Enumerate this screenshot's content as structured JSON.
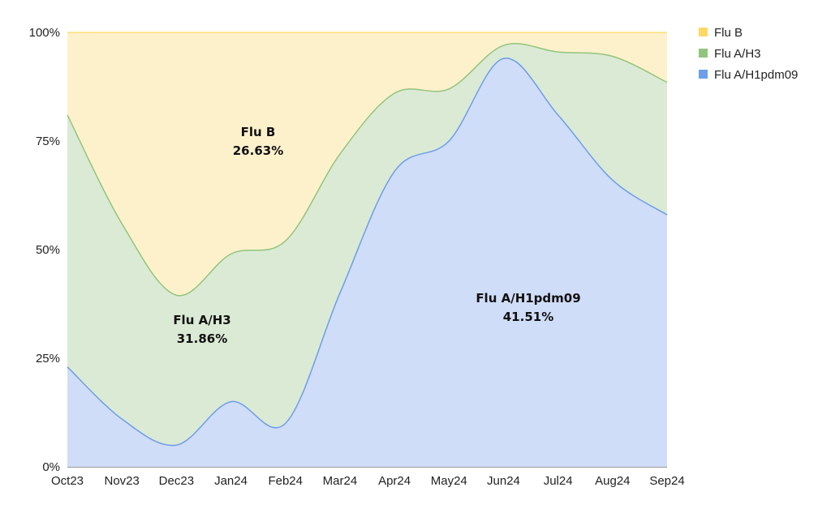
{
  "chart_data": {
    "type": "area",
    "stacked": true,
    "normalized": true,
    "categories": [
      "Oct23",
      "Nov23",
      "Dec23",
      "Jan24",
      "Feb24",
      "Mar24",
      "Apr24",
      "May24",
      "Jun24",
      "Jul24",
      "Aug24",
      "Sep24"
    ],
    "yticks": [
      "0%",
      "25%",
      "50%",
      "75%",
      "100%"
    ],
    "ylim": [
      0,
      100
    ],
    "grid": true,
    "legend_position": "top-right",
    "series": [
      {
        "name": "Flu A/H1pdm09",
        "color": "#6d9eeb",
        "fill": "#d0ddf8",
        "values": [
          23,
          11,
          5,
          15,
          10,
          40,
          68,
          75,
          94,
          81,
          66,
          58
        ]
      },
      {
        "name": "Flu A/H3",
        "color": "#93c47d",
        "fill": "#dbead4",
        "values": [
          58,
          45,
          34.5,
          34,
          42,
          32,
          18,
          12,
          3,
          14.5,
          28.5,
          30.5
        ]
      },
      {
        "name": "Flu B",
        "color": "#ffd966",
        "fill": "#fdf1cc",
        "values": [
          19,
          44,
          60.5,
          51,
          48,
          28,
          14,
          13,
          3,
          4.5,
          5.5,
          11.5
        ]
      }
    ],
    "legend": [
      "Flu B",
      "Flu A/H3",
      "Flu A/H1pdm09"
    ],
    "annotations": [
      {
        "name": "Flu B",
        "value": "26.63%"
      },
      {
        "name": "Flu A/H3",
        "value": "31.86%"
      },
      {
        "name": "Flu A/H1pdm09",
        "value": "41.51%"
      }
    ]
  }
}
